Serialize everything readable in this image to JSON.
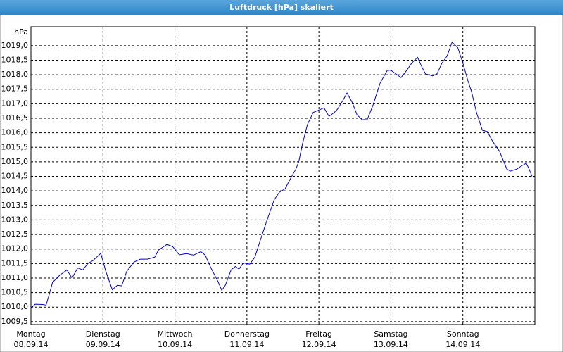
{
  "chart_data": {
    "type": "line",
    "title": "Luftdruck [hPa] skaliert",
    "y_unit": "hPa",
    "xlim": [
      0,
      7
    ],
    "xticks": [
      {
        "value": 0,
        "label": "Montag"
      },
      {
        "value": 1,
        "label": "Dienstag"
      },
      {
        "value": 2,
        "label": "Mittwoch"
      },
      {
        "value": 3,
        "label": "Donnerstag"
      },
      {
        "value": 4,
        "label": "Freitag"
      },
      {
        "value": 5,
        "label": "Samstag"
      },
      {
        "value": 6,
        "label": "Sonntag"
      }
    ],
    "xtick_dates": [
      "08.09.14",
      "09.09.14",
      "10.09.14",
      "11.09.14",
      "12.09.14",
      "13.09.14",
      "14.09.14"
    ],
    "ylim": [
      1009.4,
      1019.65
    ],
    "yticks": [
      {
        "value": 1009.5,
        "label": "1009,5"
      },
      {
        "value": 1010.0,
        "label": "1010,0"
      },
      {
        "value": 1010.5,
        "label": "1010,5"
      },
      {
        "value": 1011.0,
        "label": "1011,0"
      },
      {
        "value": 1011.5,
        "label": "1011,5"
      },
      {
        "value": 1012.0,
        "label": "1012,0"
      },
      {
        "value": 1012.5,
        "label": "1012,5"
      },
      {
        "value": 1013.0,
        "label": "1013,0"
      },
      {
        "value": 1013.5,
        "label": "1013,5"
      },
      {
        "value": 1014.0,
        "label": "1014,0"
      },
      {
        "value": 1014.5,
        "label": "1014,5"
      },
      {
        "value": 1015.0,
        "label": "1015,0"
      },
      {
        "value": 1015.5,
        "label": "1015,5"
      },
      {
        "value": 1016.0,
        "label": "1016,0"
      },
      {
        "value": 1016.5,
        "label": "1016,5"
      },
      {
        "value": 1017.0,
        "label": "1017,0"
      },
      {
        "value": 1017.5,
        "label": "1017,5"
      },
      {
        "value": 1018.0,
        "label": "1018,0"
      },
      {
        "value": 1018.5,
        "label": "1018,5"
      },
      {
        "value": 1019.0,
        "label": "1019,0"
      }
    ],
    "grid": true,
    "series": [
      {
        "color": "#0000c8",
        "x": [
          0,
          0.06,
          0.16,
          0.21,
          0.25,
          0.3,
          0.4,
          0.5,
          0.57,
          0.65,
          0.72,
          0.79,
          0.86,
          0.97,
          1.04,
          1.13,
          1.2,
          1.26,
          1.33,
          1.43,
          1.52,
          1.62,
          1.72,
          1.77,
          1.89,
          1.97,
          2.06,
          2.16,
          2.26,
          2.36,
          2.42,
          2.5,
          2.6,
          2.65,
          2.7,
          2.78,
          2.84,
          2.89,
          2.95,
          3.04,
          3.11,
          3.19,
          3.28,
          3.38,
          3.45,
          3.53,
          3.6,
          3.68,
          3.72,
          3.77,
          3.84,
          3.92,
          3.99,
          4.07,
          4.14,
          4.21,
          4.26,
          4.33,
          4.39,
          4.46,
          4.53,
          4.6,
          4.67,
          4.75,
          4.85,
          4.95,
          5.0,
          5.07,
          5.14,
          5.22,
          5.29,
          5.37,
          5.43,
          5.48,
          5.58,
          5.64,
          5.71,
          5.78,
          5.85,
          5.93,
          6.0,
          6.07,
          6.12,
          6.19,
          6.27,
          6.34,
          6.41,
          6.51,
          6.61,
          6.66,
          6.75,
          6.82,
          6.88,
          6.92,
          6.96
        ],
        "values": [
          1009.97,
          1010.1,
          1010.09,
          1010.07,
          1010.4,
          1010.85,
          1011.1,
          1011.28,
          1011.0,
          1011.35,
          1011.28,
          1011.5,
          1011.6,
          1011.85,
          1011.23,
          1010.6,
          1010.75,
          1010.73,
          1011.23,
          1011.55,
          1011.65,
          1011.65,
          1011.72,
          1011.96,
          1012.16,
          1012.08,
          1011.8,
          1011.84,
          1011.79,
          1011.91,
          1011.79,
          1011.35,
          1010.87,
          1010.58,
          1010.75,
          1011.28,
          1011.4,
          1011.31,
          1011.52,
          1011.48,
          1011.72,
          1012.33,
          1013.0,
          1013.7,
          1013.95,
          1014.07,
          1014.4,
          1014.75,
          1015.0,
          1015.6,
          1016.28,
          1016.7,
          1016.77,
          1016.86,
          1016.57,
          1016.69,
          1016.82,
          1017.1,
          1017.37,
          1017.06,
          1016.62,
          1016.45,
          1016.45,
          1016.94,
          1017.71,
          1018.15,
          1018.15,
          1018.03,
          1017.9,
          1018.15,
          1018.4,
          1018.6,
          1018.27,
          1018.03,
          1017.96,
          1018.03,
          1018.4,
          1018.64,
          1019.12,
          1018.93,
          1018.4,
          1017.79,
          1017.42,
          1016.69,
          1016.09,
          1016.04,
          1015.72,
          1015.36,
          1014.75,
          1014.68,
          1014.75,
          1014.87,
          1014.95,
          1014.75,
          1014.5
        ]
      }
    ]
  }
}
